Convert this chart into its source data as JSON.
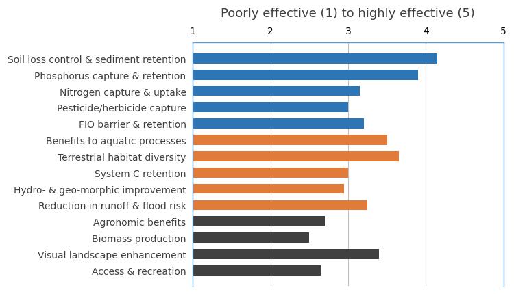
{
  "title": "Poorly effective (1) to highly effective (5)",
  "categories": [
    "Soil loss control & sediment retention",
    "Phosphorus capture & retention",
    "Nitrogen capture & uptake",
    "Pesticide/herbicide capture",
    "FIO barrier & retention",
    "Benefits to aquatic processes",
    "Terrestrial habitat diversity",
    "System C retention",
    "Hydro- & geo-morphic improvement",
    "Reduction in runoff & flood risk",
    "Agronomic benefits",
    "Biomass production",
    "Visual landscape enhancement",
    "Access & recreation"
  ],
  "values": [
    4.15,
    3.9,
    3.15,
    3.0,
    3.2,
    3.5,
    3.65,
    3.0,
    2.95,
    3.25,
    2.7,
    2.5,
    3.4,
    2.65
  ],
  "colors": [
    "#2E75B6",
    "#2E75B6",
    "#2E75B6",
    "#2E75B6",
    "#2E75B6",
    "#E07B39",
    "#E07B39",
    "#E07B39",
    "#E07B39",
    "#E07B39",
    "#404040",
    "#404040",
    "#404040",
    "#404040"
  ],
  "xstart": 1,
  "xlim": [
    1,
    5
  ],
  "xticks": [
    1,
    2,
    3,
    4,
    5
  ],
  "background_color": "#FFFFFF",
  "plot_bg_color": "#FFFFFF",
  "border_color": "#5B9BD5",
  "grid_color": "#BFBFBF",
  "title_fontsize": 13,
  "tick_fontsize": 10,
  "label_fontsize": 10
}
